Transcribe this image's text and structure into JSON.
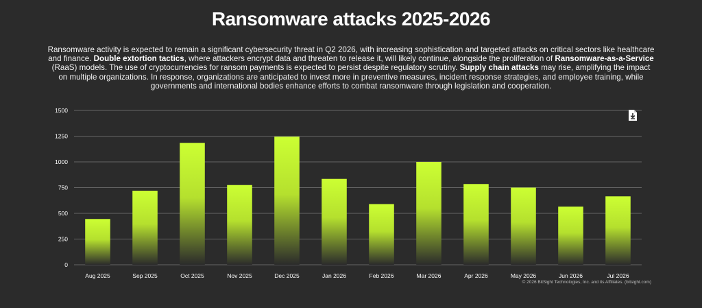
{
  "title": "Ransomware attacks 2025-2026",
  "description": {
    "parts": [
      {
        "text": "Ransomware activity is expected to remain a significant cybersecurity threat in Q2 2026, with increasing sophistication and targeted attacks on critical sectors like healthcare and finance. ",
        "bold": false
      },
      {
        "text": "Double extortion tactics",
        "bold": true
      },
      {
        "text": ", where attackers encrypt data and threaten to release it, will likely continue, alongside the proliferation of ",
        "bold": false
      },
      {
        "text": "Ransomware-as-a-Service",
        "bold": true
      },
      {
        "text": " (RaaS) models. The use of cryptocurrencies for ransom payments is expected to persist despite regulatory scrutiny. ",
        "bold": false
      },
      {
        "text": "Supply chain attacks",
        "bold": true
      },
      {
        "text": " may rise, amplifying the impact on multiple organizations. In response, organizations are anticipated to invest more in preventive measures, incident response strategies, and employee training, while governments and international bodies enhance efforts to combat ransomware through legislation and cooperation.",
        "bold": false
      }
    ]
  },
  "download_icon": "download-icon",
  "copyright": "© 2026 BitSight Technologies, Inc. and its Affiliates. (bitsight.com)",
  "colors": {
    "background": "#2b2b2b",
    "bar_top": "#ccff33",
    "bar_bottom": "#2b2b2b",
    "grid": "#7a7a7a",
    "text": "#ffffff"
  },
  "chart_data": {
    "type": "bar",
    "categories": [
      "Aug 2025",
      "Sep 2025",
      "Oct 2025",
      "Nov 2025",
      "Dec 2025",
      "Jan 2026",
      "Feb 2026",
      "Mar 2026",
      "Apr 2026",
      "May 2026",
      "Jun 2026",
      "Jul 2026"
    ],
    "values": [
      445,
      720,
      1185,
      775,
      1245,
      835,
      590,
      1000,
      785,
      750,
      565,
      665
    ],
    "ylim": [
      0,
      1500
    ],
    "yticks": [
      0,
      250,
      500,
      750,
      1000,
      1250,
      1500
    ],
    "grid": true,
    "legend": "none"
  }
}
